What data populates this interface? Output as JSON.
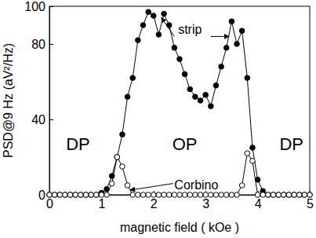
{
  "chart_data": {
    "type": "line",
    "x_label": "magnetic field ( kOe )",
    "y_label": "PSD@9 Hz (aV²/Hz)",
    "x": [
      0,
      0.1,
      0.2,
      0.3,
      0.4,
      0.5,
      0.6,
      0.7,
      0.8,
      0.9,
      1.0,
      1.1,
      1.2,
      1.3,
      1.4,
      1.5,
      1.6,
      1.7,
      1.8,
      1.9,
      2.0,
      2.1,
      2.2,
      2.3,
      2.4,
      2.5,
      2.6,
      2.7,
      2.8,
      2.9,
      3.0,
      3.1,
      3.2,
      3.3,
      3.4,
      3.5,
      3.6,
      3.7,
      3.8,
      3.9,
      4.0,
      4.1,
      4.2,
      4.3,
      4.4,
      4.5,
      4.6,
      4.7,
      4.8,
      4.9,
      5.0
    ],
    "series": [
      {
        "name": "strip",
        "color": "#000000",
        "marker": "filled",
        "line_style": "solid",
        "values": [
          0,
          0,
          0,
          0,
          0,
          0,
          0,
          0,
          0,
          0,
          1,
          3,
          10,
          20,
          32,
          52,
          62,
          82,
          90,
          97,
          95,
          85,
          96,
          90,
          78,
          72,
          64,
          56,
          52,
          50,
          53,
          47,
          58,
          68,
          78,
          92,
          80,
          87,
          62,
          25,
          8,
          2,
          0,
          0,
          0,
          0,
          0,
          0,
          0,
          0,
          0
        ]
      },
      {
        "name": "Corbino",
        "color": "#000000",
        "marker": "open",
        "line_style": "solid",
        "values": [
          0,
          0,
          0,
          0,
          0,
          0,
          0,
          0,
          0,
          0,
          0,
          0,
          6,
          20,
          15,
          5,
          0,
          0,
          0,
          0,
          0,
          0,
          0,
          0,
          0,
          0,
          0,
          0,
          0,
          0,
          0,
          0,
          0,
          0,
          0,
          0,
          0,
          5,
          22,
          18,
          0,
          0,
          0,
          0,
          0,
          0,
          0,
          0,
          0,
          0,
          0
        ]
      }
    ],
    "annotations": [
      "strip",
      "Corbino",
      "DP",
      "OP",
      "DP"
    ],
    "xlim": [
      0,
      5
    ],
    "xticks": [
      0,
      1,
      2,
      3,
      4,
      5
    ],
    "ylim": [
      0,
      100
    ],
    "yticks": [
      0,
      40,
      80,
      100
    ],
    "grid": false
  }
}
